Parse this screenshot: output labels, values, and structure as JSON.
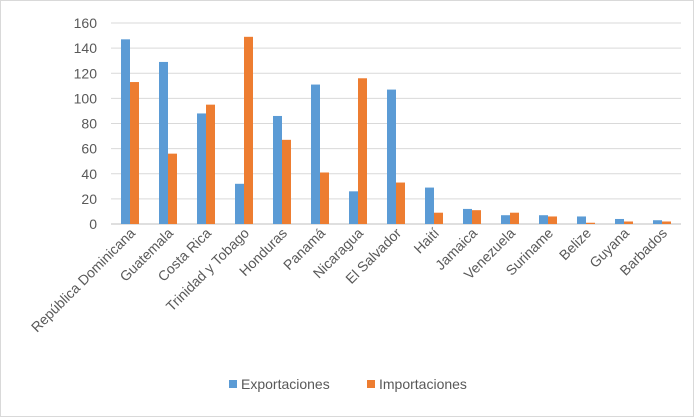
{
  "chart_data": {
    "type": "bar",
    "title": "",
    "xlabel": "",
    "ylabel": "",
    "ylim": [
      0,
      160
    ],
    "yticks": [
      0,
      20,
      40,
      60,
      80,
      100,
      120,
      140,
      160
    ],
    "grid": true,
    "legend_position": "bottom",
    "categories": [
      "República Dominicana",
      "Guatemala",
      "Costa Rica",
      "Trinidad y Tobago",
      "Honduras",
      "Panamá",
      "Nicaragua",
      "El Salvador",
      "Haití",
      "Jamaica",
      "Venezuela",
      "Suriname",
      "Belize",
      "Guyana",
      "Barbados"
    ],
    "series": [
      {
        "name": "Exportaciones",
        "color": "#5b9bd5",
        "values": [
          147,
          129,
          88,
          32,
          86,
          111,
          26,
          107,
          29,
          12,
          7,
          7,
          6,
          4,
          3
        ]
      },
      {
        "name": "Importaciones",
        "color": "#ed7d31",
        "values": [
          113,
          56,
          95,
          149,
          67,
          41,
          116,
          33,
          9,
          11,
          9,
          6,
          1,
          2,
          2
        ]
      }
    ]
  }
}
